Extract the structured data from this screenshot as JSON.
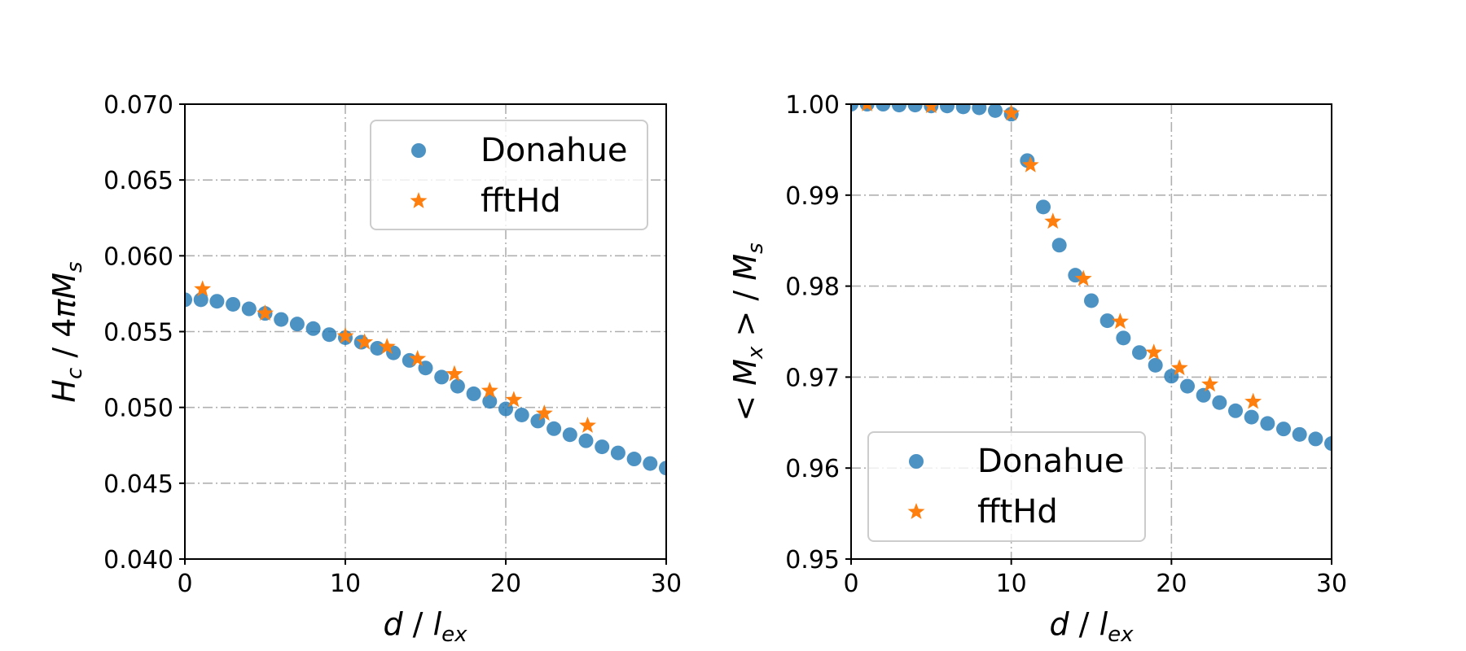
{
  "colors": {
    "donahue": "#1f77b4",
    "ffthd": "#ff7f0e",
    "grid": "#b0b0b0"
  },
  "chart_data": [
    {
      "type": "scatter",
      "title": "",
      "xlabel": "d / l_ex",
      "ylabel": "H_c / 4πM_s",
      "xlim": [
        0,
        30
      ],
      "ylim": [
        0.04,
        0.07
      ],
      "xticks": [
        0,
        10,
        20,
        30
      ],
      "xtick_labels": [
        "0",
        "10",
        "20",
        "30"
      ],
      "yticks": [
        0.04,
        0.045,
        0.05,
        0.055,
        0.06,
        0.065,
        0.07
      ],
      "ytick_labels": [
        "0.040",
        "0.045",
        "0.050",
        "0.055",
        "0.060",
        "0.065",
        "0.070"
      ],
      "grid": true,
      "legend_position": "top-right",
      "series": [
        {
          "name": "Donahue",
          "marker": "circle",
          "x": [
            0,
            1,
            2,
            3,
            4,
            5,
            6,
            7,
            8,
            9,
            10,
            11,
            12,
            13,
            14,
            15,
            16,
            17,
            18,
            19,
            20,
            21,
            22,
            23,
            24,
            25,
            26,
            27,
            28,
            29,
            30
          ],
          "y": [
            0.0571,
            0.0571,
            0.057,
            0.0568,
            0.0565,
            0.0562,
            0.0558,
            0.0555,
            0.0552,
            0.0548,
            0.0546,
            0.0543,
            0.0539,
            0.0536,
            0.0531,
            0.0526,
            0.052,
            0.0514,
            0.0509,
            0.0504,
            0.0499,
            0.0495,
            0.0491,
            0.0486,
            0.0482,
            0.0478,
            0.0474,
            0.047,
            0.0466,
            0.0463,
            0.046
          ]
        },
        {
          "name": "fftHd",
          "marker": "star",
          "x": [
            1.1,
            5.0,
            10.0,
            11.2,
            12.6,
            14.5,
            16.8,
            19.0,
            20.5,
            22.4,
            25.1
          ],
          "y": [
            0.0578,
            0.0562,
            0.0547,
            0.0543,
            0.054,
            0.0532,
            0.0522,
            0.0511,
            0.0505,
            0.0496,
            0.0488
          ]
        }
      ]
    },
    {
      "type": "scatter",
      "title": "",
      "xlabel": "d / l_ex",
      "ylabel": "< M_x > / M_s",
      "xlim": [
        0,
        30
      ],
      "ylim": [
        0.95,
        1.0
      ],
      "xticks": [
        0,
        10,
        20,
        30
      ],
      "xtick_labels": [
        "0",
        "10",
        "20",
        "30"
      ],
      "yticks": [
        0.95,
        0.96,
        0.97,
        0.98,
        0.99,
        1.0
      ],
      "ytick_labels": [
        "0.95",
        "0.96",
        "0.97",
        "0.98",
        "0.99",
        "1.00"
      ],
      "grid": true,
      "legend_position": "bottom-left",
      "series": [
        {
          "name": "Donahue",
          "marker": "circle",
          "x": [
            0,
            1,
            2,
            3,
            4,
            5,
            6,
            7,
            8,
            9,
            10,
            11,
            12,
            13,
            14,
            15,
            16,
            17,
            18,
            19,
            20,
            21,
            22,
            23,
            24,
            25,
            26,
            27,
            28,
            29,
            30
          ],
          "y": [
            1.0,
            1.0,
            1.0,
            0.9999,
            0.9999,
            0.9998,
            0.9998,
            0.9997,
            0.9996,
            0.9993,
            0.9989,
            0.9938,
            0.9887,
            0.9845,
            0.9812,
            0.9784,
            0.9762,
            0.9743,
            0.9727,
            0.9713,
            0.9701,
            0.969,
            0.968,
            0.9672,
            0.9663,
            0.9656,
            0.9649,
            0.9643,
            0.9637,
            0.9632,
            0.9627
          ]
        },
        {
          "name": "fftHd",
          "marker": "star",
          "x": [
            1.0,
            5.0,
            10.0,
            11.2,
            12.6,
            14.5,
            16.8,
            18.9,
            20.5,
            22.4,
            25.1
          ],
          "y": [
            1.0,
            0.9998,
            0.999,
            0.9933,
            0.9871,
            0.9808,
            0.9761,
            0.9727,
            0.971,
            0.9692,
            0.9673
          ]
        }
      ]
    }
  ]
}
